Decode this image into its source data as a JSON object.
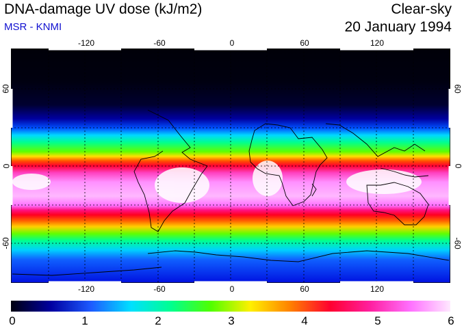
{
  "header": {
    "title": "DNA-damage UV dose (kJ/m2)",
    "source": "MSR - KNMI",
    "condition": "Clear-sky",
    "date": "20 January 1994"
  },
  "map": {
    "lon_labels": [
      "-120",
      "-60",
      "0",
      "60",
      "120"
    ],
    "lat_labels": [
      "60",
      "0",
      "-60"
    ],
    "gridlines": "dotted, every 30 degrees"
  },
  "colorbar": {
    "min": 0,
    "max": 6,
    "tick_labels": [
      "0",
      "1",
      "2",
      "3",
      "4",
      "5",
      "6"
    ],
    "colors": [
      "#000010",
      "#0000a0",
      "#1e5aff",
      "#00e0ff",
      "#00ff90",
      "#50ff00",
      "#fff000",
      "#ff8000",
      "#ff0030",
      "#ff20a0",
      "#ff70ff",
      "#ffe8ff"
    ]
  }
}
